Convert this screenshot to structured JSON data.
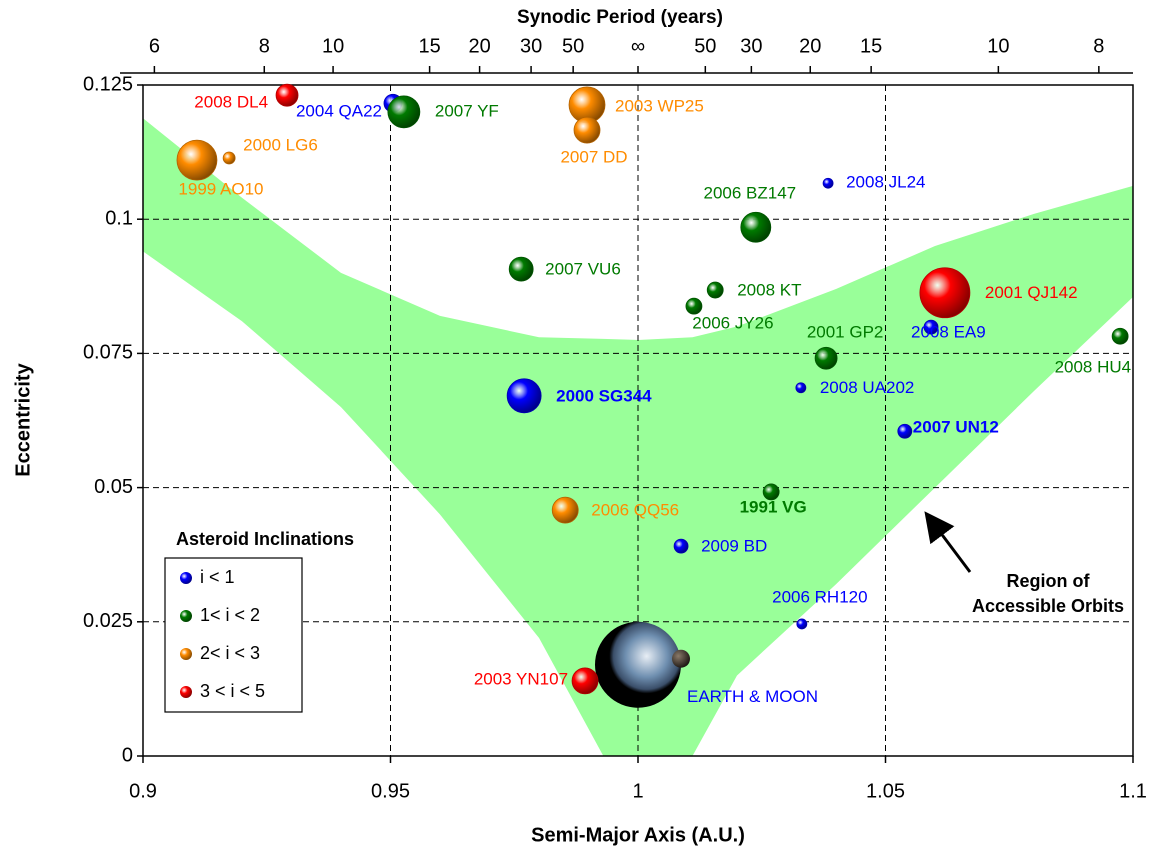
{
  "chart_data": {
    "type": "bubble",
    "top_axis_title": "Synodic Period (years)",
    "xlabel": "Semi-Major Axis (A.U.)",
    "ylabel": "Eccentricity",
    "xlim": [
      0.9,
      1.1
    ],
    "ylim": [
      0,
      0.125
    ],
    "xticks": [
      0.9,
      0.95,
      1,
      1.05,
      1.1
    ],
    "yticks": [
      0,
      0.025,
      0.05,
      0.075,
      0.1,
      0.125
    ],
    "x2ticks": [
      {
        "value": 0.9023,
        "label": "6"
      },
      {
        "value": 0.9245,
        "label": "8"
      },
      {
        "value": 0.9384,
        "label": "10"
      },
      {
        "value": 0.9579,
        "label": "15"
      },
      {
        "value": 0.968,
        "label": "20"
      },
      {
        "value": 0.9784,
        "label": "30"
      },
      {
        "value": 0.9869,
        "label": "50"
      },
      {
        "value": 1,
        "label": "∞"
      },
      {
        "value": 1.0136,
        "label": "50"
      },
      {
        "value": 1.0229,
        "label": "30"
      },
      {
        "value": 1.0348,
        "label": "20"
      },
      {
        "value": 1.0471,
        "label": "15"
      },
      {
        "value": 1.0728,
        "label": "10"
      },
      {
        "value": 1.0931,
        "label": "8"
      }
    ],
    "grid": true,
    "legend_title": "Asteroid Inclinations",
    "legend_position": "lower left",
    "region": {
      "label_lines": [
        "Region of",
        "Accessible Orbits"
      ],
      "color": "#99ff99",
      "x": [
        0.9,
        0.92,
        0.94,
        0.96,
        0.98,
        0.993,
        1.0,
        1.011,
        1.02,
        1.04,
        1.06,
        1.08,
        1.1
      ],
      "upper": [
        0.1188,
        0.104,
        0.09,
        0.082,
        0.078,
        0.0777,
        0.0775,
        0.078,
        0.08,
        0.087,
        0.095,
        0.101,
        0.1062
      ],
      "lower": [
        0.094,
        0.081,
        0.065,
        0.045,
        0.022,
        0,
        0,
        0,
        0.015,
        0.032,
        0.05,
        0.068,
        0.0855
      ]
    },
    "earth": {
      "label": "EARTH & MOON",
      "x": 1.0,
      "y": 0.017
    },
    "series": [
      {
        "name": "i < 1",
        "color": "#0000ff",
        "labels": [
          "2004 QA22",
          "2008 JL24",
          "2008 EA9",
          "2008 UA202",
          "2000 SG344",
          "2007 UN12",
          "2009 BD",
          "2006 RH120"
        ],
        "x": [
          0.9505,
          1.0384,
          1.0592,
          1.0329,
          0.977,
          1.0539,
          1.0087,
          1.0331
        ],
        "values": [
          0.1216,
          0.1067,
          0.0799,
          0.0686,
          0.0671,
          0.0605,
          0.0391,
          0.0246
        ],
        "sizes": [
          9,
          5,
          7,
          5,
          17,
          7,
          7,
          5
        ]
      },
      {
        "name": "1< i < 2",
        "color": "#007a00",
        "labels": [
          "2007 YF",
          "2006 BZ147",
          "2007 VU6",
          "2008 KT",
          "2006 JY26",
          "2008 HU4",
          "2001 GP2",
          "1991 VG"
        ],
        "x": [
          0.9527,
          1.0238,
          0.9764,
          1.0156,
          1.0113,
          1.0974,
          1.038,
          1.0269
        ],
        "values": [
          0.12,
          0.0985,
          0.0907,
          0.0868,
          0.0838,
          0.0782,
          0.0741,
          0.0492
        ],
        "sizes": [
          16,
          15,
          12,
          8,
          8,
          8,
          11,
          8
        ]
      },
      {
        "name": "2< i < 3",
        "color": "#ff8c00",
        "labels": [
          "2003 WP25",
          "2007 DD",
          "2000 LG6",
          "1999 AO10",
          "2006 QQ56"
        ],
        "x": [
          0.9897,
          0.9897,
          0.9174,
          0.9109,
          0.9853
        ],
        "values": [
          0.1213,
          0.1166,
          0.1114,
          0.111,
          0.0458
        ],
        "sizes": [
          18,
          13,
          6,
          20,
          13
        ]
      },
      {
        "name": "3 < i < 5",
        "color": "#ff0000",
        "labels": [
          "2008 DL4",
          "2001 QJ142",
          "2003 YN107"
        ],
        "x": [
          0.9291,
          1.062,
          0.9893
        ],
        "values": [
          0.1231,
          0.0863,
          0.014
        ],
        "sizes": [
          11,
          25,
          13
        ]
      }
    ]
  }
}
